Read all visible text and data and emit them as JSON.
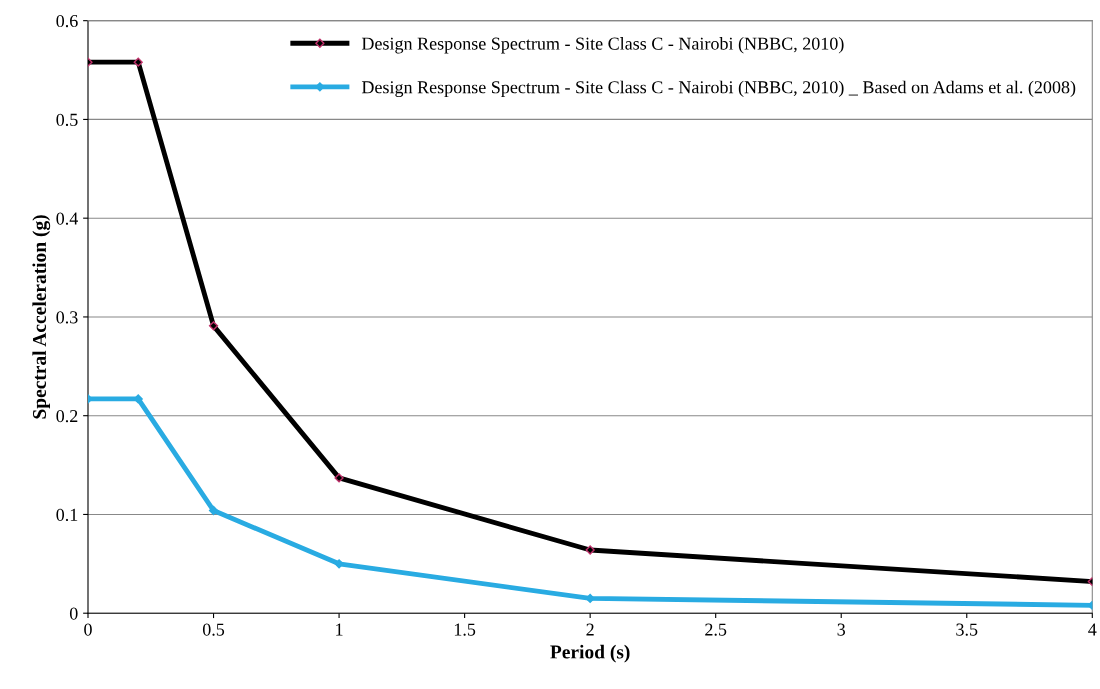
{
  "chart_data": {
    "type": "line",
    "xlabel": "Period (s)",
    "ylabel": "Spectral Acceleration (g)",
    "x": [
      0,
      0.2,
      0.5,
      1,
      2,
      4
    ],
    "series": [
      {
        "name": "Design Response Spectrum - Site Class C - Nairobi (NBBC, 2010)",
        "color": "#000000",
        "values": [
          0.558,
          0.558,
          0.291,
          0.137,
          0.064,
          0.032
        ]
      },
      {
        "name": "Design Response Spectrum - Site Class C - Nairobi (NBBC, 2010) _ Based on Adams et al. (2008)",
        "color": "#29abe2",
        "values": [
          0.217,
          0.217,
          0.104,
          0.05,
          0.015,
          0.008
        ]
      }
    ],
    "xlim": [
      0,
      4
    ],
    "xticks": [
      0,
      0.5,
      1,
      1.5,
      2,
      2.5,
      3,
      3.5,
      4
    ],
    "ylim": [
      0,
      0.6
    ],
    "yticks": [
      0,
      0.1,
      0.2,
      0.3,
      0.4,
      0.5,
      0.6
    ],
    "grid": "y",
    "legend": "top right",
    "marker": "diamond",
    "line_style": "solid"
  }
}
